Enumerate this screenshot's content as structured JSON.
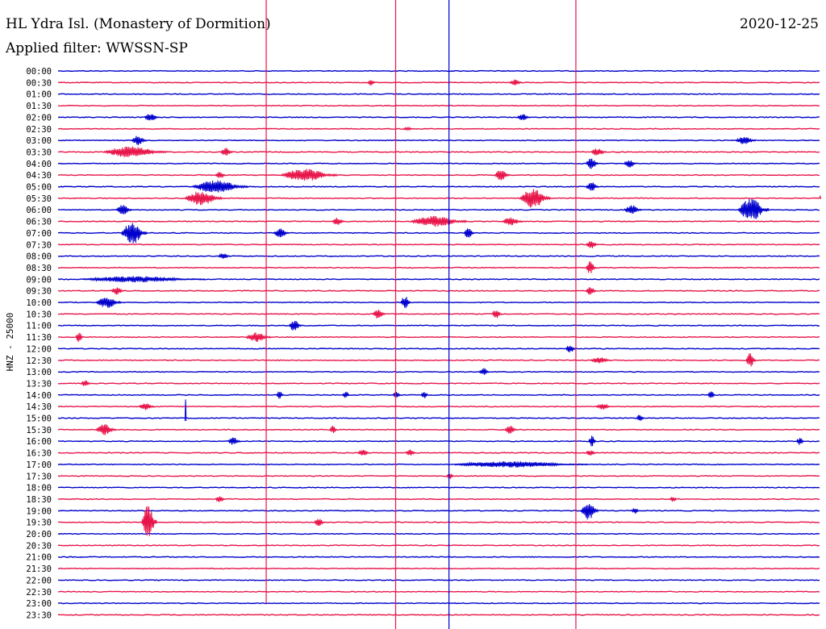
{
  "header": {
    "title": "HL Ydra Isl. (Monastery of Dormition)",
    "filter": "Applied filter: WWSSN-SP",
    "date": "2020-12-25"
  },
  "colors": {
    "blue": "#0000cc",
    "red": "#e8154a",
    "background": "#ffffff"
  },
  "chart_data": {
    "type": "line",
    "title": "HL Ydra Isl. (Monastery of Dormition)",
    "ylabel": "HNZ - 25000",
    "x_unit": "minutes",
    "xlim": [
      0,
      30
    ],
    "row_labels": [
      "00:00",
      "00:30",
      "01:00",
      "01:30",
      "02:00",
      "02:30",
      "03:00",
      "03:30",
      "04:00",
      "04:30",
      "05:00",
      "05:30",
      "06:00",
      "06:30",
      "07:00",
      "07:30",
      "08:00",
      "08:30",
      "09:00",
      "09:30",
      "10:00",
      "10:30",
      "11:00",
      "11:30",
      "12:00",
      "12:30",
      "13:00",
      "13:30",
      "14:00",
      "14:30",
      "15:00",
      "15:30",
      "16:00",
      "16:30",
      "17:00",
      "17:30",
      "18:00",
      "18:30",
      "19:00",
      "19:30",
      "20:00",
      "20:30",
      "21:00",
      "21:30",
      "22:00",
      "22:30",
      "23:00",
      "23:30"
    ],
    "row_colors": [
      "blue",
      "red"
    ],
    "vertical_markers": [
      {
        "color": "red",
        "minute": 8.2,
        "from_row": 0,
        "to_row": 46
      },
      {
        "color": "red",
        "minute": 13.3,
        "from_row": 0,
        "to_row": 48
      },
      {
        "color": "blue",
        "minute": 15.4,
        "from_row": 0,
        "to_row": 48
      },
      {
        "color": "red",
        "minute": 20.4,
        "from_row": 0,
        "to_row": 48
      }
    ],
    "trace_end": {
      "row": 47,
      "minute": 30
    },
    "events": [
      {
        "row": 1,
        "minute": 12.2,
        "amp": 4,
        "dur": 0.3
      },
      {
        "row": 1,
        "minute": 17.8,
        "amp": 4,
        "dur": 0.5
      },
      {
        "row": 4,
        "minute": 3.4,
        "amp": 5,
        "dur": 0.6
      },
      {
        "row": 4,
        "minute": 18.1,
        "amp": 4,
        "dur": 0.5
      },
      {
        "row": 5,
        "minute": 13.6,
        "amp": 2,
        "dur": 0.4
      },
      {
        "row": 6,
        "minute": 2.9,
        "amp": 6,
        "dur": 0.6
      },
      {
        "row": 6,
        "minute": 26.7,
        "amp": 5,
        "dur": 0.8
      },
      {
        "row": 7,
        "minute": 1.8,
        "amp": 7,
        "dur": 2.5
      },
      {
        "row": 7,
        "minute": 6.4,
        "amp": 5,
        "dur": 0.5
      },
      {
        "row": 7,
        "minute": 21.0,
        "amp": 5,
        "dur": 0.6
      },
      {
        "row": 8,
        "minute": 20.8,
        "amp": 7,
        "dur": 0.5
      },
      {
        "row": 8,
        "minute": 22.3,
        "amp": 5,
        "dur": 0.5
      },
      {
        "row": 9,
        "minute": 8.8,
        "amp": 8,
        "dur": 2.2
      },
      {
        "row": 9,
        "minute": 17.2,
        "amp": 7,
        "dur": 0.6
      },
      {
        "row": 9,
        "minute": 6.2,
        "amp": 5,
        "dur": 0.4
      },
      {
        "row": 10,
        "minute": 5.3,
        "amp": 8,
        "dur": 2.2
      },
      {
        "row": 10,
        "minute": 20.8,
        "amp": 6,
        "dur": 0.5
      },
      {
        "row": 11,
        "minute": 5.0,
        "amp": 9,
        "dur": 1.5
      },
      {
        "row": 11,
        "minute": 18.2,
        "amp": 12,
        "dur": 1.2
      },
      {
        "row": 11,
        "minute": 30.0,
        "amp": 5,
        "dur": 0.6
      },
      {
        "row": 12,
        "minute": 2.3,
        "amp": 7,
        "dur": 0.6
      },
      {
        "row": 12,
        "minute": 22.3,
        "amp": 6,
        "dur": 0.7
      },
      {
        "row": 12,
        "minute": 26.8,
        "amp": 14,
        "dur": 1.2
      },
      {
        "row": 13,
        "minute": 13.9,
        "amp": 7,
        "dur": 2.2
      },
      {
        "row": 13,
        "minute": 10.8,
        "amp": 5,
        "dur": 0.5
      },
      {
        "row": 13,
        "minute": 17.5,
        "amp": 5,
        "dur": 0.8
      },
      {
        "row": 14,
        "minute": 2.5,
        "amp": 14,
        "dur": 1.0
      },
      {
        "row": 14,
        "minute": 8.5,
        "amp": 6,
        "dur": 0.6
      },
      {
        "row": 14,
        "minute": 16.0,
        "amp": 8,
        "dur": 0.4
      },
      {
        "row": 15,
        "minute": 20.8,
        "amp": 5,
        "dur": 0.5
      },
      {
        "row": 16,
        "minute": 6.3,
        "amp": 4,
        "dur": 0.5
      },
      {
        "row": 17,
        "minute": 20.8,
        "amp": 8,
        "dur": 0.4
      },
      {
        "row": 18,
        "minute": 1.0,
        "amp": 4,
        "dur": 4.8
      },
      {
        "row": 19,
        "minute": 2.1,
        "amp": 5,
        "dur": 0.5
      },
      {
        "row": 19,
        "minute": 20.8,
        "amp": 6,
        "dur": 0.4
      },
      {
        "row": 20,
        "minute": 1.5,
        "amp": 7,
        "dur": 1.0
      },
      {
        "row": 20,
        "minute": 13.5,
        "amp": 8,
        "dur": 0.4
      },
      {
        "row": 21,
        "minute": 12.4,
        "amp": 6,
        "dur": 0.5
      },
      {
        "row": 21,
        "minute": 17.1,
        "amp": 6,
        "dur": 0.4
      },
      {
        "row": 22,
        "minute": 9.1,
        "amp": 7,
        "dur": 0.5
      },
      {
        "row": 23,
        "minute": 0.7,
        "amp": 7,
        "dur": 0.3
      },
      {
        "row": 23,
        "minute": 7.4,
        "amp": 6,
        "dur": 1.0
      },
      {
        "row": 24,
        "minute": 20.0,
        "amp": 5,
        "dur": 0.4
      },
      {
        "row": 25,
        "minute": 27.1,
        "amp": 9,
        "dur": 0.4
      },
      {
        "row": 25,
        "minute": 21.0,
        "amp": 4,
        "dur": 0.8
      },
      {
        "row": 26,
        "minute": 16.6,
        "amp": 5,
        "dur": 0.4
      },
      {
        "row": 27,
        "minute": 0.9,
        "amp": 4,
        "dur": 0.4
      },
      {
        "row": 28,
        "minute": 8.6,
        "amp": 5,
        "dur": 0.3
      },
      {
        "row": 28,
        "minute": 11.2,
        "amp": 5,
        "dur": 0.3
      },
      {
        "row": 28,
        "minute": 14.3,
        "amp": 5,
        "dur": 0.3
      },
      {
        "row": 28,
        "minute": 13.2,
        "amp": 5,
        "dur": 0.3
      },
      {
        "row": 28,
        "minute": 25.6,
        "amp": 5,
        "dur": 0.3
      },
      {
        "row": 29,
        "minute": 3.2,
        "amp": 5,
        "dur": 0.6
      },
      {
        "row": 29,
        "minute": 21.2,
        "amp": 4,
        "dur": 0.6
      },
      {
        "row": 30,
        "minute": 5.0,
        "amp": 25,
        "dur": 0.05
      },
      {
        "row": 30,
        "minute": 22.8,
        "amp": 5,
        "dur": 0.3
      },
      {
        "row": 31,
        "minute": 1.5,
        "amp": 7,
        "dur": 0.8
      },
      {
        "row": 31,
        "minute": 10.7,
        "amp": 5,
        "dur": 0.3
      },
      {
        "row": 31,
        "minute": 17.6,
        "amp": 5,
        "dur": 0.5
      },
      {
        "row": 32,
        "minute": 6.7,
        "amp": 5,
        "dur": 0.5
      },
      {
        "row": 32,
        "minute": 20.9,
        "amp": 7,
        "dur": 0.3
      },
      {
        "row": 32,
        "minute": 29.1,
        "amp": 5,
        "dur": 0.3
      },
      {
        "row": 33,
        "minute": 11.8,
        "amp": 4,
        "dur": 0.5
      },
      {
        "row": 33,
        "minute": 13.7,
        "amp": 4,
        "dur": 0.4
      },
      {
        "row": 33,
        "minute": 20.8,
        "amp": 4,
        "dur": 0.4
      },
      {
        "row": 34,
        "minute": 15.6,
        "amp": 4,
        "dur": 5.3
      },
      {
        "row": 35,
        "minute": 15.3,
        "amp": 4,
        "dur": 0.3
      },
      {
        "row": 37,
        "minute": 6.2,
        "amp": 4,
        "dur": 0.4
      },
      {
        "row": 37,
        "minute": 24.1,
        "amp": 4,
        "dur": 0.3
      },
      {
        "row": 38,
        "minute": 20.6,
        "amp": 12,
        "dur": 0.7
      },
      {
        "row": 38,
        "minute": 22.6,
        "amp": 4,
        "dur": 0.3
      },
      {
        "row": 39,
        "minute": 3.3,
        "amp": 22,
        "dur": 0.6
      },
      {
        "row": 39,
        "minute": 10.1,
        "amp": 5,
        "dur": 0.4
      }
    ]
  }
}
